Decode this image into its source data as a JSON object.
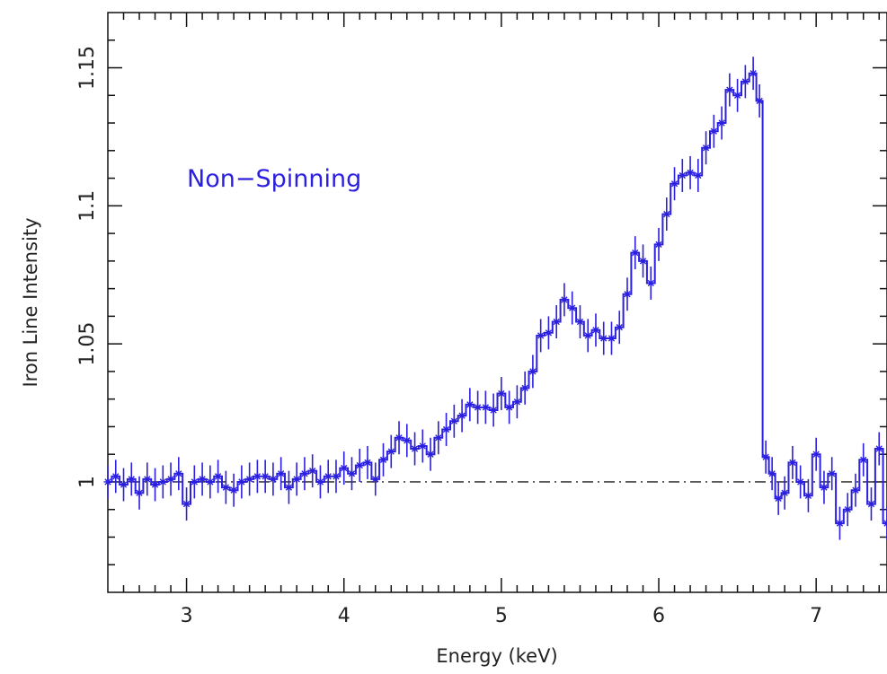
{
  "colors": {
    "series": "#2b1fe0",
    "axis": "#111111",
    "baseline": "#444444"
  },
  "chart_data": {
    "type": "line",
    "title": "",
    "xlabel": "Energy (keV)",
    "ylabel": "Iron Line Intensity",
    "annotation": "Non−Spinning",
    "xlim": [
      2.5,
      7.45
    ],
    "ylim": [
      0.96,
      1.17
    ],
    "x_ticks": [
      {
        "value": 3,
        "label": "3"
      },
      {
        "value": 4,
        "label": "4"
      },
      {
        "value": 5,
        "label": "5"
      },
      {
        "value": 6,
        "label": "6"
      },
      {
        "value": 7,
        "label": "7"
      }
    ],
    "y_ticks": [
      {
        "value": 1.0,
        "label": "1"
      },
      {
        "value": 1.05,
        "label": "1.05"
      },
      {
        "value": 1.1,
        "label": "1.1"
      },
      {
        "value": 1.15,
        "label": "1.15"
      }
    ],
    "baseline": 1.0,
    "error": 0.006,
    "series": [
      {
        "x": [
          2.5,
          2.55,
          2.6,
          2.65,
          2.7,
          2.75,
          2.8,
          2.85,
          2.9,
          2.95,
          3.0,
          3.05,
          3.1,
          3.15,
          3.2,
          3.25,
          3.3,
          3.35,
          3.4,
          3.45,
          3.5,
          3.55,
          3.6,
          3.65,
          3.7,
          3.75,
          3.8,
          3.85,
          3.9,
          3.95,
          4.0,
          4.05,
          4.1,
          4.15,
          4.2,
          4.25,
          4.3,
          4.35,
          4.4,
          4.45,
          4.5,
          4.55,
          4.6,
          4.65,
          4.7,
          4.75,
          4.8,
          4.85,
          4.9,
          4.95,
          5.0,
          5.05,
          5.1,
          5.15,
          5.2,
          5.25,
          5.3,
          5.35,
          5.4,
          5.45,
          5.5,
          5.55,
          5.6,
          5.65,
          5.7,
          5.75,
          5.8,
          5.85,
          5.9,
          5.95,
          6.0,
          6.05,
          6.1,
          6.15,
          6.2,
          6.25,
          6.3,
          6.35,
          6.4,
          6.45,
          6.5,
          6.55,
          6.6,
          6.64,
          6.68,
          6.72,
          6.76,
          6.8,
          6.85,
          6.9,
          6.95,
          7.0,
          7.05,
          7.1,
          7.15,
          7.2,
          7.25,
          7.3,
          7.35,
          7.4,
          7.45
        ],
        "y": [
          1.0,
          1.002,
          0.999,
          1.001,
          0.996,
          1.001,
          0.999,
          1.0,
          1.001,
          1.003,
          0.992,
          1.0,
          1.001,
          1.0,
          1.002,
          0.998,
          0.997,
          1.0,
          1.001,
          1.002,
          1.002,
          1.001,
          1.003,
          0.998,
          1.001,
          1.003,
          1.004,
          1.0,
          1.002,
          1.002,
          1.005,
          1.003,
          1.006,
          1.007,
          1.001,
          1.008,
          1.011,
          1.016,
          1.015,
          1.012,
          1.013,
          1.01,
          1.016,
          1.019,
          1.022,
          1.024,
          1.028,
          1.027,
          1.027,
          1.026,
          1.032,
          1.027,
          1.029,
          1.034,
          1.04,
          1.053,
          1.054,
          1.058,
          1.066,
          1.063,
          1.058,
          1.053,
          1.055,
          1.052,
          1.052,
          1.056,
          1.068,
          1.083,
          1.08,
          1.072,
          1.086,
          1.097,
          1.108,
          1.111,
          1.112,
          1.111,
          1.121,
          1.127,
          1.13,
          1.142,
          1.14,
          1.145,
          1.148,
          1.138,
          1.009,
          1.003,
          0.994,
          0.996,
          1.007,
          1.0,
          0.995,
          1.01,
          0.998,
          1.003,
          0.985,
          0.99,
          0.997,
          1.008,
          0.992,
          1.012,
          0.985
        ]
      }
    ]
  }
}
